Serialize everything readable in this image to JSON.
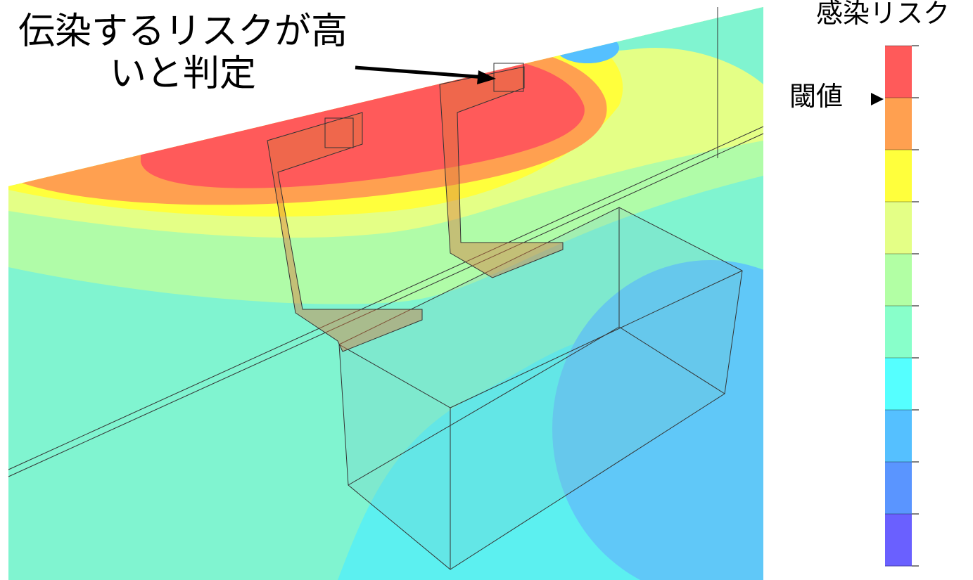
{
  "annotation": {
    "lines": [
      "伝染するリスクが高",
      "いと判定"
    ]
  },
  "colorbar": {
    "title": "感染リスク",
    "threshold_label": "閾値",
    "colors": [
      "#ff5a5a",
      "#ffa050",
      "#ffff3c",
      "#e4ff86",
      "#b2ffa4",
      "#88ffca",
      "#55ffff",
      "#55c0ff",
      "#5a95ff",
      "#6a60ff"
    ]
  }
}
